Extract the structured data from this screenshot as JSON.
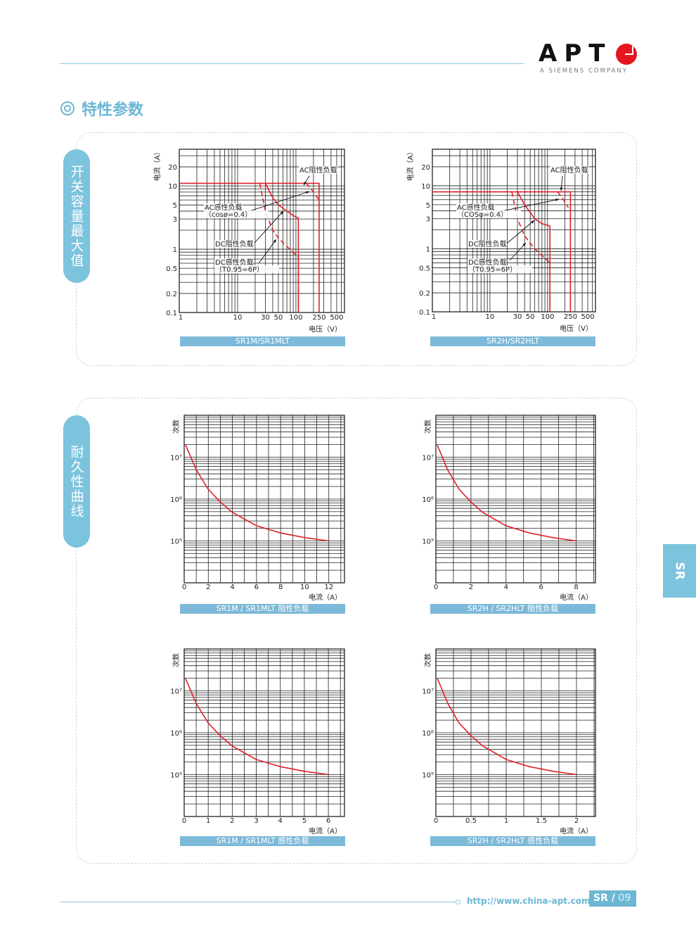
{
  "header": {
    "logo_text": "APT",
    "logo_sub": "A SIEMENS COMPANY"
  },
  "section_title": "特性参数",
  "side_labels": [
    "开关容量最大值",
    "耐久性曲线"
  ],
  "side_tab": "SR",
  "footer": {
    "url": "http://www.china-apt.com",
    "section": "SR /",
    "page": "09"
  },
  "colors": {
    "accent": "#7cc3dd",
    "curve": "#e0202a",
    "logo_red": "#e4161e"
  },
  "chart_data": [
    {
      "type": "line",
      "caption": "SR1M/SR1MLT",
      "xlabel": "电压（V）",
      "ylabel": "电流（A）",
      "xscale": "log",
      "yscale": "log",
      "xlim": [
        1,
        680
      ],
      "ylim": [
        0.1,
        38
      ],
      "grid": true,
      "xticks": [
        1,
        10,
        30,
        50,
        100,
        250,
        500
      ],
      "yticks": [
        0.1,
        0.2,
        0.5,
        1,
        3,
        5,
        10,
        20
      ],
      "series": [
        {
          "name": "AC阻性负载",
          "style": "solid",
          "points": [
            [
              1,
              11
            ],
            [
              250,
              11
            ],
            [
              250,
              0.1
            ]
          ]
        },
        {
          "name": "AC感性负载（cosø=0.4）",
          "style": "dashed",
          "points": [
            [
              150,
              11
            ],
            [
              190,
              8.5
            ],
            [
              250,
              6
            ]
          ]
        },
        {
          "name": "DC阻性负载",
          "style": "solid",
          "points": [
            [
              30,
              11
            ],
            [
              40,
              6.5
            ],
            [
              50,
              5
            ],
            [
              70,
              4
            ],
            [
              90,
              3.4
            ],
            [
              110,
              3.1
            ],
            [
              110,
              0.1
            ]
          ]
        },
        {
          "name": "DC感性负载（T0.95=6P）",
          "style": "dashed",
          "points": [
            [
              24,
              11
            ],
            [
              30,
              4
            ],
            [
              40,
              2
            ],
            [
              50,
              1.5
            ],
            [
              70,
              1.1
            ],
            [
              110,
              0.75
            ],
            [
              110,
              0.1
            ]
          ]
        }
      ],
      "annotations": [
        {
          "lines": [
            "AC阻性负载"
          ]
        },
        {
          "lines": [
            "AC感性负载",
            "（cosø=0.4）"
          ]
        },
        {
          "lines": [
            "DC阻性负载"
          ]
        },
        {
          "lines": [
            "DC感性负载",
            "（T0.95=6P）"
          ]
        }
      ]
    },
    {
      "type": "line",
      "caption": "SR2H/SR2HLT",
      "xlabel": "电压（V）",
      "ylabel": "电流（A）",
      "xscale": "log",
      "yscale": "log",
      "xlim": [
        1,
        680
      ],
      "ylim": [
        0.1,
        38
      ],
      "grid": true,
      "xticks": [
        1,
        10,
        30,
        50,
        100,
        250,
        500
      ],
      "yticks": [
        0.1,
        0.2,
        0.5,
        1,
        3,
        5,
        10,
        20
      ],
      "series": [
        {
          "name": "AC阻性负载",
          "style": "solid",
          "points": [
            [
              1,
              8
            ],
            [
              250,
              8
            ],
            [
              250,
              0.1
            ]
          ]
        },
        {
          "name": "AC感性负载（COSφ=0.4）",
          "style": "dashed",
          "points": [
            [
              150,
              8
            ],
            [
              190,
              6
            ],
            [
              230,
              4.5
            ]
          ]
        },
        {
          "name": "DC阻性负载",
          "style": "solid",
          "points": [
            [
              30,
              8
            ],
            [
              40,
              5
            ],
            [
              60,
              3
            ],
            [
              80,
              2.5
            ],
            [
              110,
              2.3
            ],
            [
              110,
              0.1
            ]
          ]
        },
        {
          "name": "DC感性负载（T0.95=6P）",
          "style": "dashed",
          "points": [
            [
              24,
              8
            ],
            [
              30,
              3
            ],
            [
              40,
              1.6
            ],
            [
              60,
              1
            ],
            [
              110,
              0.6
            ],
            [
              110,
              0.1
            ]
          ]
        }
      ],
      "annotations": [
        {
          "lines": [
            "AC阻性负载"
          ]
        },
        {
          "lines": [
            "AC感性负载",
            "（COSφ=0.4）"
          ]
        },
        {
          "lines": [
            "DC阻性负载"
          ]
        },
        {
          "lines": [
            "DC感性负载",
            "（T0.95=6P）"
          ]
        }
      ]
    },
    {
      "type": "line",
      "caption": "SR1M / SR1MLT 阻性负载",
      "xlabel": "电流（A）",
      "ylabel": "次数",
      "xscale": "linear",
      "yscale": "log",
      "xlim": [
        0,
        13.3
      ],
      "ylim": [
        10000,
        100000000
      ],
      "grid": true,
      "x_grid_step": 1,
      "xticks": [
        0,
        2,
        4,
        6,
        8,
        10,
        12
      ],
      "yticks": [
        100000,
        1000000,
        10000000
      ],
      "ytick_labels": [
        "10⁵",
        "10⁶",
        "10⁷"
      ],
      "series": [
        {
          "style": "solid",
          "points": [
            [
              0.1,
              20000000
            ],
            [
              1,
              5000000
            ],
            [
              2,
              1700000
            ],
            [
              3,
              850000
            ],
            [
              4,
              480000
            ],
            [
              6,
              230000
            ],
            [
              8,
              155000
            ],
            [
              10,
              120000
            ],
            [
              12,
              100000
            ]
          ]
        }
      ]
    },
    {
      "type": "line",
      "caption": "SR2H / SR2HLT 阻性负载",
      "xlabel": "电流（A）",
      "ylabel": "次数",
      "xscale": "linear",
      "yscale": "log",
      "xlim": [
        0,
        9.1
      ],
      "ylim": [
        10000,
        100000000
      ],
      "grid": true,
      "x_grid_step": 1,
      "xticks": [
        0,
        2,
        4,
        6,
        8
      ],
      "yticks": [
        100000,
        1000000,
        10000000
      ],
      "ytick_labels": [
        "10⁵",
        "10⁶",
        "10⁷"
      ],
      "series": [
        {
          "style": "solid",
          "points": [
            [
              0.07,
              20000000
            ],
            [
              0.67,
              5000000
            ],
            [
              1.33,
              1700000
            ],
            [
              2,
              850000
            ],
            [
              2.67,
              480000
            ],
            [
              4,
              230000
            ],
            [
              5.33,
              155000
            ],
            [
              6.67,
              120000
            ],
            [
              8,
              100000
            ]
          ]
        }
      ]
    },
    {
      "type": "line",
      "caption": "SR1M / SR1MLT 感性负载",
      "xlabel": "电流（A）",
      "ylabel": "次数",
      "xscale": "linear",
      "yscale": "log",
      "xlim": [
        0,
        6.67
      ],
      "ylim": [
        10000,
        100000000
      ],
      "grid": true,
      "x_grid_step": 0.5,
      "xticks": [
        0,
        1,
        2,
        3,
        4,
        5,
        6
      ],
      "yticks": [
        100000,
        1000000,
        10000000
      ],
      "ytick_labels": [
        "10⁵",
        "10⁶",
        "10⁷"
      ],
      "series": [
        {
          "style": "solid",
          "points": [
            [
              0.05,
              20000000
            ],
            [
              0.5,
              5000000
            ],
            [
              1,
              1700000
            ],
            [
              1.5,
              850000
            ],
            [
              2,
              480000
            ],
            [
              3,
              230000
            ],
            [
              4,
              155000
            ],
            [
              5,
              120000
            ],
            [
              6,
              100000
            ]
          ]
        }
      ]
    },
    {
      "type": "line",
      "caption": "SR2H / SR2HLT 感性负载",
      "xlabel": "电流（A）",
      "ylabel": "次数",
      "xscale": "linear",
      "yscale": "log",
      "xlim": [
        0,
        2.27
      ],
      "ylim": [
        10000,
        100000000
      ],
      "grid": true,
      "x_grid_step": 0.25,
      "xticks": [
        0,
        0.5,
        1,
        1.5,
        2
      ],
      "yticks": [
        100000,
        1000000,
        10000000
      ],
      "ytick_labels": [
        "10⁵",
        "10⁶",
        "10⁷"
      ],
      "series": [
        {
          "style": "solid",
          "points": [
            [
              0.02,
              20000000
            ],
            [
              0.17,
              5000000
            ],
            [
              0.33,
              1700000
            ],
            [
              0.5,
              850000
            ],
            [
              0.67,
              480000
            ],
            [
              1,
              230000
            ],
            [
              1.33,
              155000
            ],
            [
              1.67,
              120000
            ],
            [
              2,
              100000
            ]
          ]
        }
      ]
    }
  ]
}
